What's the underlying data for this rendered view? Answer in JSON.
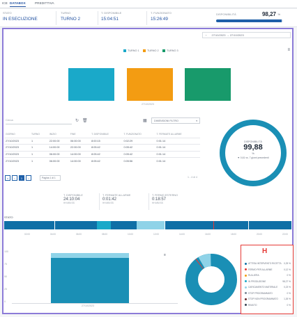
{
  "tabs": [
    "ICE",
    "DATABOX",
    "PREDITTIVA"
  ],
  "status": {
    "stato_label": "STATO",
    "stato_value": "IN ESECUZIONE",
    "turno_label": "TURNO",
    "turno_value": "TURNO 2",
    "t_disp_label": "T. DISPONIBILE",
    "t_disp_value": "15:04:51",
    "t_fun_label": "T. FUNZIONATO",
    "t_fun_value": "15:26:49",
    "disp_label": "DISPONIBILITÀ",
    "disp_value": "98,27",
    "disp_unit": "%",
    "disp_fill": 0.9827
  },
  "date_range": "27/10/2023 → 27/10/2023",
  "legend": [
    {
      "label": "TURNO 1",
      "color": "#1aa9c9"
    },
    {
      "label": "TURNO 2",
      "color": "#f39c12"
    },
    {
      "label": "TURNO 3",
      "color": "#189a6b"
    }
  ],
  "chart_data": [
    {
      "type": "bar",
      "categories": [
        "TURNO 1",
        "TURNO 2",
        "TURNO 3"
      ],
      "values": [
        100,
        100,
        100
      ],
      "xlabel": "27/10/2023"
    }
  ],
  "toolbar": {
    "search_placeholder": "Cerca",
    "group_label": "DIMENSIONI FILTRO"
  },
  "table": {
    "headers": [
      "GIORNO",
      "TURNO",
      "INIZIO",
      "FINE",
      "T. DISPONIBILE",
      "T. FUNZIONATO",
      "T. FERMATE ALLARME"
    ],
    "rows": [
      [
        "27/10/2023",
        "1",
        "22:00:00",
        "06:00:00",
        "8:00:15",
        "0:02:29",
        "0:01:14"
      ],
      [
        "27/10/2023",
        "1",
        "14:00:00",
        "22:00:00",
        "8:05:42",
        "0:05:42",
        "0:01:14"
      ],
      [
        "27/10/2023",
        "1",
        "06:00:00",
        "14:00:00",
        "8:05:42",
        "0:05:42",
        "0:01:14"
      ],
      [
        "27/10/2023",
        "1",
        "06:00:00",
        "14:00:00",
        "8:05:42",
        "0:05:56",
        "0:01:14"
      ]
    ]
  },
  "pagination": {
    "buttons": [
      "«",
      "‹",
      "1",
      "›"
    ],
    "page_label": "Pagina 1 di 1",
    "count": "1 - 4 di 4"
  },
  "gauge": {
    "title": "DISPONIBILITÀ",
    "value": "99,88",
    "unit": "%",
    "sub": "▼ 0,61 vs. 7 giorni precedenti",
    "fill": 0.9988
  },
  "kpis": [
    {
      "label": "T. DISPONIBILE",
      "value": "24:10:04",
      "unit": "HH:MM:SS"
    },
    {
      "label": "T. FERMATE ALLARME",
      "value": "0:01:42",
      "unit": "HH:MM:SS"
    },
    {
      "label": "T. FERMO ESTERNO",
      "value": "0:18:57",
      "unit": "HH:MM:SS"
    }
  ],
  "timeline_label": "STATO",
  "timeline_ticks": [
    "02:00",
    "04:00",
    "06:00",
    "08:00",
    "10:00",
    "12:00",
    "14:00",
    "16:00",
    "18:00",
    "20:00",
    "22:00"
  ],
  "stack_chart": {
    "yticks": [
      "100",
      "75",
      "50",
      "25",
      "0"
    ],
    "xlabel": "27/10/2023"
  },
  "h_label": "H",
  "states": [
    {
      "name": "ATTESA INTERVENTO RICETTA",
      "pct": "0,25 %",
      "color": "#0f6fa6"
    },
    {
      "name": "FERMO PER ALLARME",
      "pct": "0,12 %",
      "color": "#e53935"
    },
    {
      "name": "RULLIERA",
      "pct": "0 %",
      "color": "#f39c12"
    },
    {
      "name": "IN PRODUZIONE",
      "pct": "98,27 %",
      "color": "#1aa9c9"
    },
    {
      "name": "CARICAMENTO MATERIALE",
      "pct": "0,23 %",
      "color": "#8fd3e8"
    },
    {
      "name": "STOP PROGRAMMATO",
      "pct": "0 %",
      "color": "#7b8794"
    },
    {
      "name": "STOP NON PROGRAMMATO",
      "pct": "1,26 %",
      "color": "#6b2c2c"
    },
    {
      "name": "RIMUTO",
      "pct": "0 %",
      "color": "#374151"
    }
  ]
}
